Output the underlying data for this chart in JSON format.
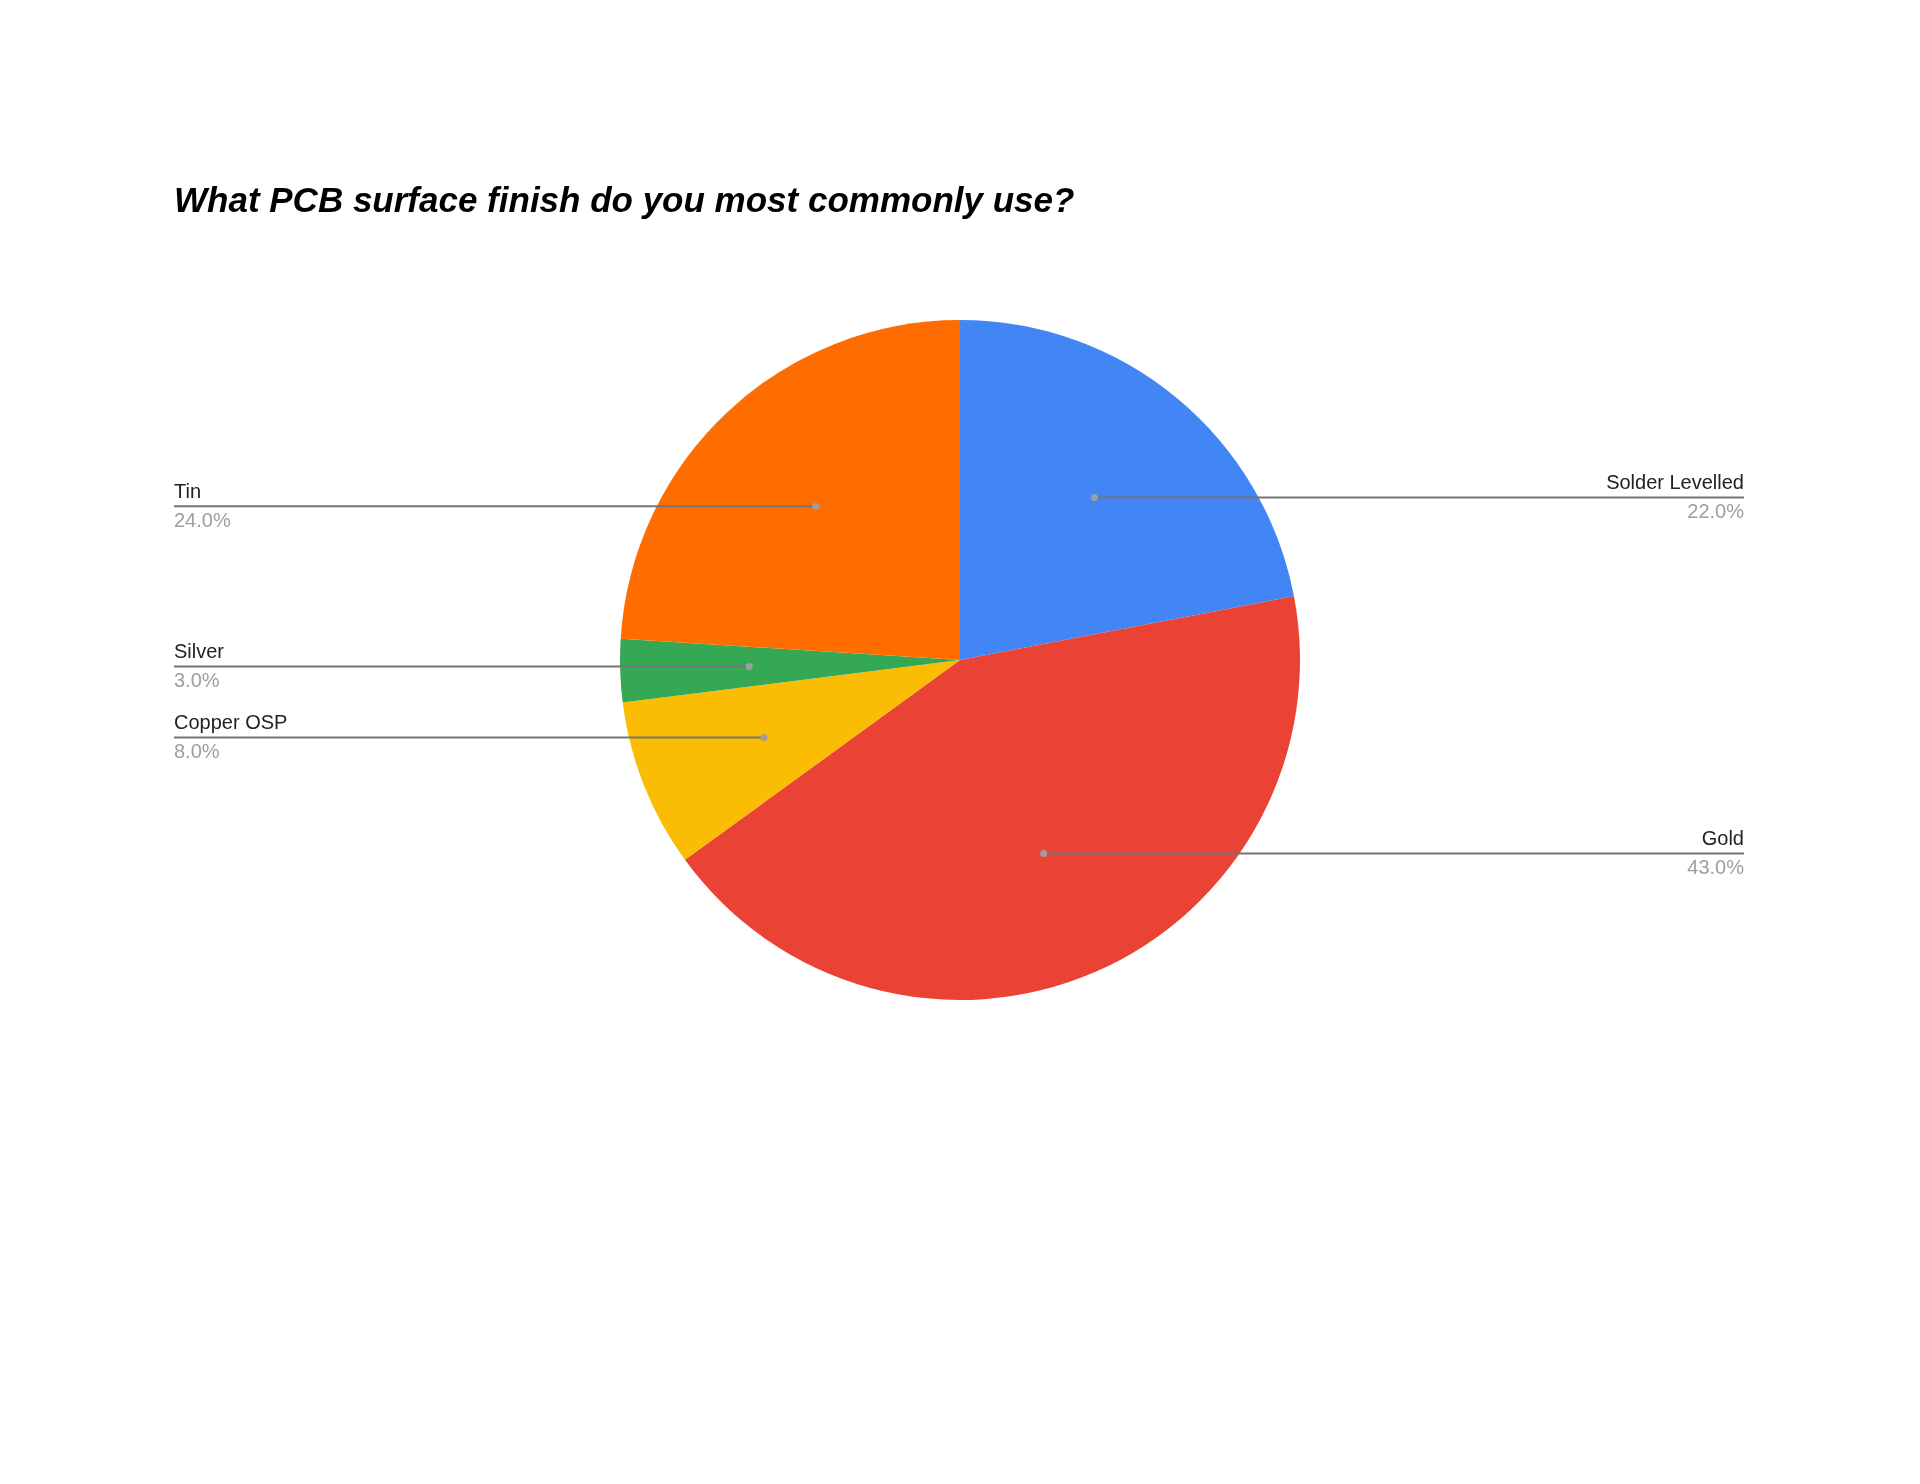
{
  "chart_data": {
    "type": "pie",
    "title": "What PCB surface finish do you most commonly use?",
    "categories": [
      "Solder Levelled",
      "Gold",
      "Copper OSP",
      "Silver",
      "Tin"
    ],
    "values": [
      22,
      43,
      8,
      3,
      24
    ],
    "colors": [
      "#4285f4",
      "#ea4335",
      "#fbbc04",
      "#34a853",
      "#ff6d01"
    ],
    "value_labels": [
      "22.0%",
      "43.0%",
      "8.0%",
      "3.0%",
      "24.0%"
    ]
  }
}
